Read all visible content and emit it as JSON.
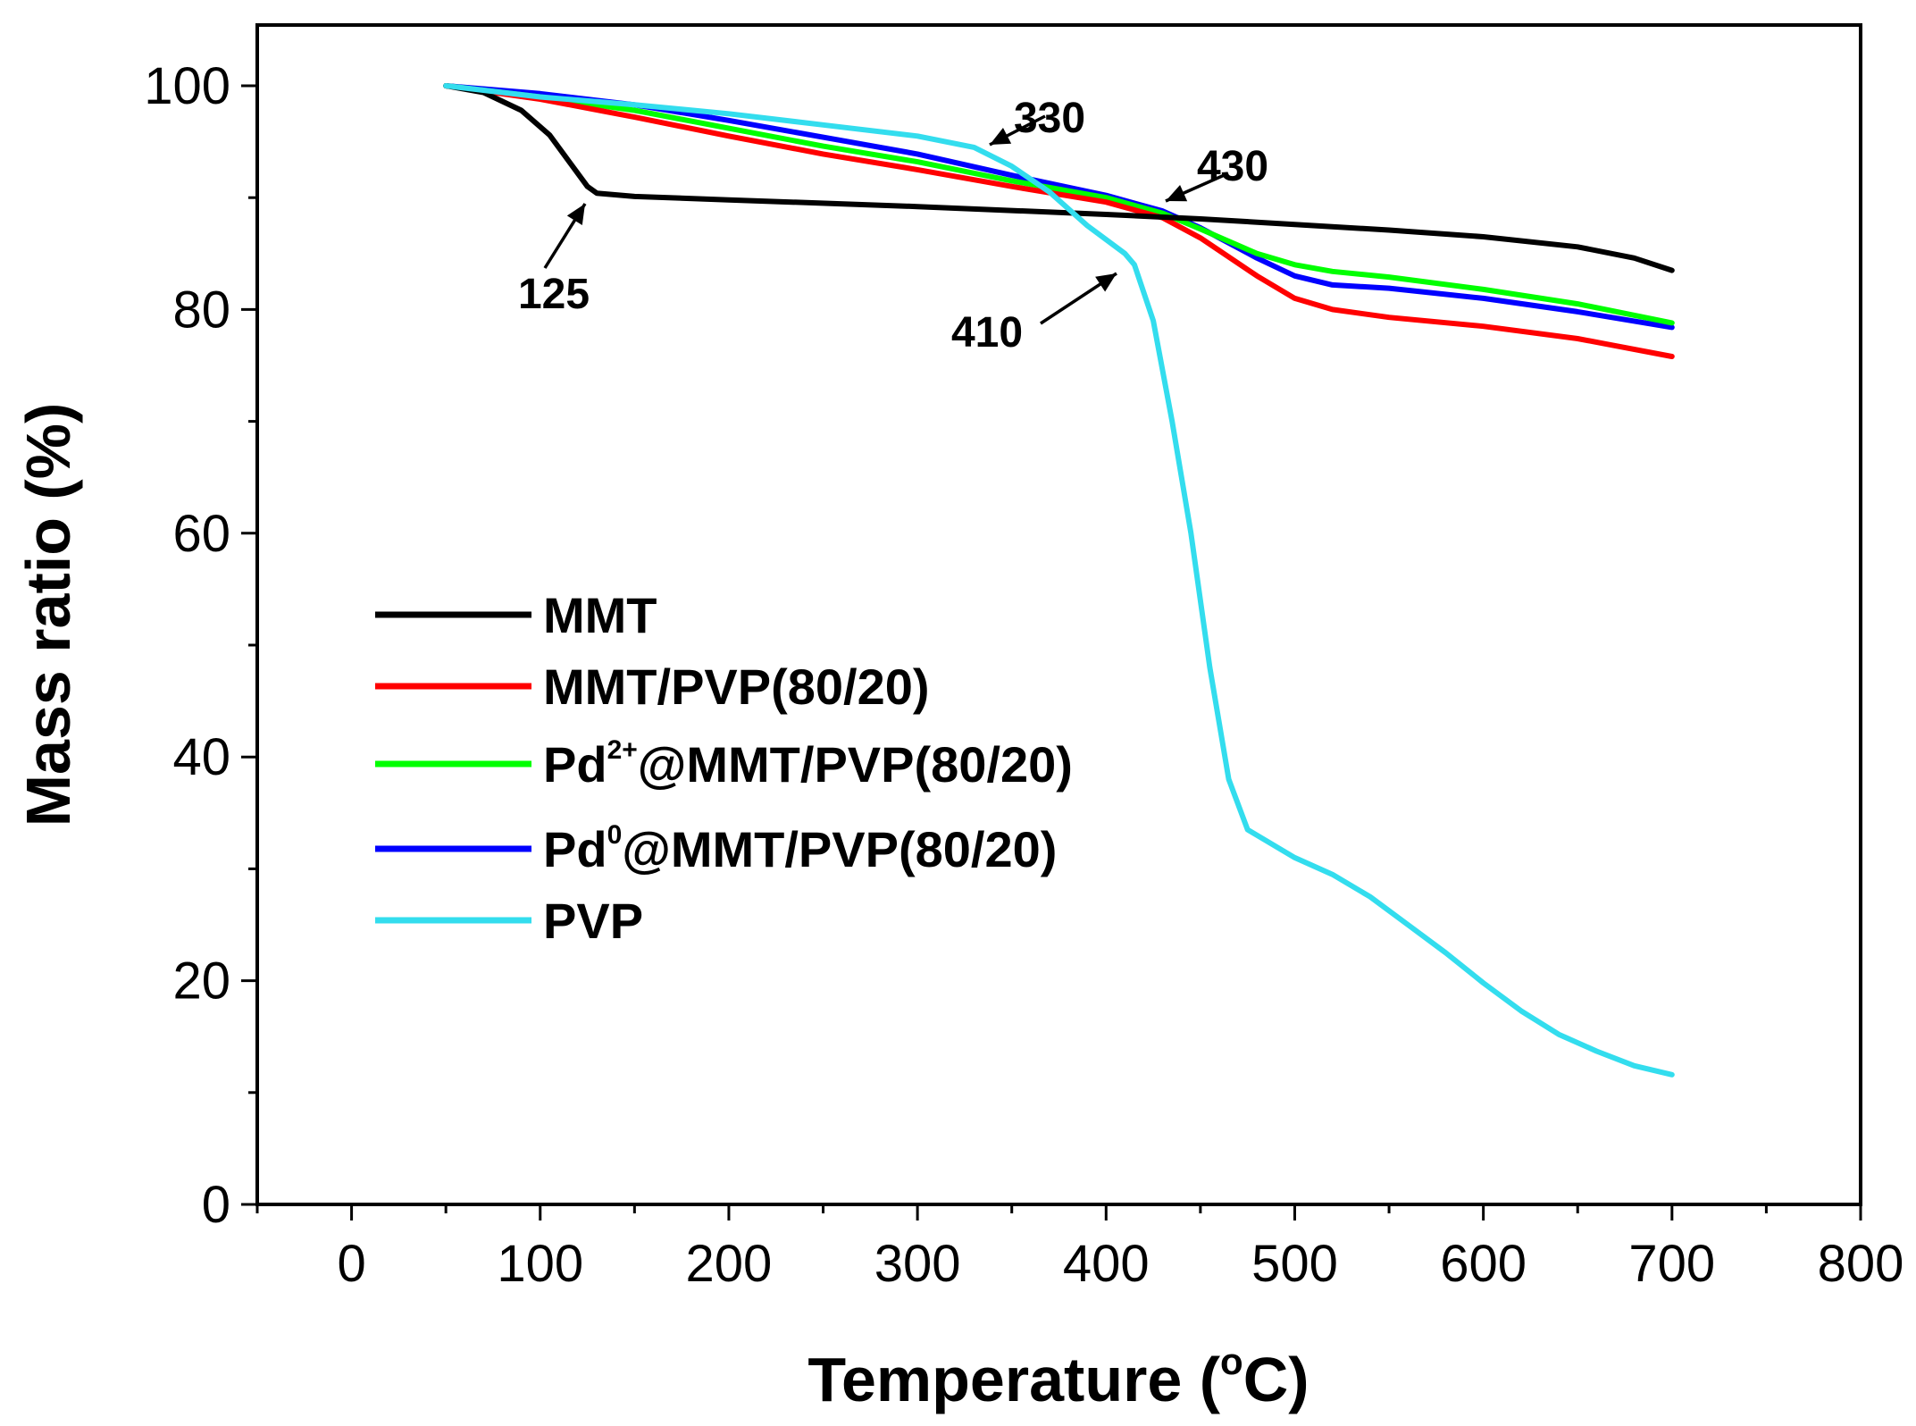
{
  "chart_data": {
    "type": "line",
    "title": "",
    "xlabel": "Temperature (°C)",
    "xlabel_main": "Temperature (",
    "xlabel_sup": "o",
    "xlabel_end": "C)",
    "ylabel": "Mass ratio (%)",
    "xlim": [
      -50,
      800
    ],
    "ylim": [
      0,
      105
    ],
    "xticks": [
      0,
      100,
      200,
      300,
      400,
      500,
      600,
      700,
      800
    ],
    "yticks": [
      0,
      20,
      40,
      60,
      80,
      100
    ],
    "legend_position": "center-left",
    "series": [
      {
        "name": "MMT",
        "name_parts": [
          "MMT"
        ],
        "color": "#000000",
        "x": [
          50,
          70,
          90,
          105,
          115,
          125,
          130,
          150,
          200,
          300,
          400,
          450,
          500,
          550,
          600,
          650,
          680,
          700
        ],
        "y": [
          100,
          99.4,
          97.8,
          95.6,
          93.3,
          91,
          90.4,
          90.1,
          89.8,
          89.2,
          88.5,
          88.1,
          87.6,
          87.1,
          86.5,
          85.6,
          84.6,
          83.5
        ]
      },
      {
        "name": "MMT/PVP(80/20)",
        "name_parts": [
          "MMT/PVP(80/20)"
        ],
        "color": "#ff0000",
        "x": [
          50,
          100,
          150,
          200,
          250,
          300,
          350,
          400,
          430,
          450,
          480,
          500,
          520,
          550,
          600,
          650,
          700
        ],
        "y": [
          100,
          98.8,
          97.2,
          95.5,
          93.9,
          92.5,
          91,
          89.6,
          88.2,
          86.4,
          83,
          81,
          80,
          79.3,
          78.5,
          77.4,
          75.8
        ]
      },
      {
        "name": "Pd2+@MMT/PVP(80/20)",
        "name_parts": [
          "Pd",
          "2+",
          "@MMT/PVP(80/20)"
        ],
        "color": "#00ff00",
        "x": [
          50,
          100,
          150,
          200,
          250,
          300,
          350,
          400,
          430,
          450,
          480,
          500,
          520,
          550,
          600,
          650,
          700
        ],
        "y": [
          100,
          99,
          97.8,
          96.2,
          94.6,
          93.2,
          91.5,
          90,
          88.6,
          87.2,
          85,
          84,
          83.4,
          82.9,
          81.8,
          80.5,
          78.8
        ]
      },
      {
        "name": "Pd0@MMT/PVP(80/20)",
        "name_parts": [
          "Pd",
          "0",
          "@MMT/PVP(80/20)"
        ],
        "color": "#0000ff",
        "x": [
          50,
          100,
          150,
          200,
          250,
          300,
          350,
          400,
          430,
          450,
          480,
          500,
          520,
          550,
          600,
          650,
          700
        ],
        "y": [
          100,
          99.3,
          98.3,
          96.9,
          95.4,
          93.9,
          92,
          90.2,
          88.8,
          87.3,
          84.6,
          83,
          82.2,
          81.9,
          81,
          79.8,
          78.4
        ]
      },
      {
        "name": "PVP",
        "name_parts": [
          "PVP"
        ],
        "color": "#33ddee",
        "x": [
          50,
          100,
          150,
          200,
          250,
          300,
          330,
          350,
          370,
          390,
          410,
          415,
          425,
          435,
          445,
          455,
          465,
          475,
          480,
          500,
          520,
          540,
          560,
          580,
          600,
          620,
          640,
          660,
          680,
          700
        ],
        "y": [
          100,
          99,
          98.3,
          97.5,
          96.5,
          95.5,
          94.5,
          92.8,
          90.5,
          87.5,
          85,
          84,
          79,
          70,
          60,
          48,
          38,
          33.5,
          33,
          31,
          29.5,
          27.5,
          25,
          22.5,
          19.8,
          17.3,
          15.2,
          13.7,
          12.4,
          11.6
        ]
      }
    ],
    "annotations": [
      {
        "label": "125",
        "x": 125,
        "y": 91
      },
      {
        "label": "330",
        "x": 330,
        "y": 94.5
      },
      {
        "label": "410",
        "x": 410,
        "y": 84
      },
      {
        "label": "430",
        "x": 430,
        "y": 89.5
      }
    ]
  }
}
